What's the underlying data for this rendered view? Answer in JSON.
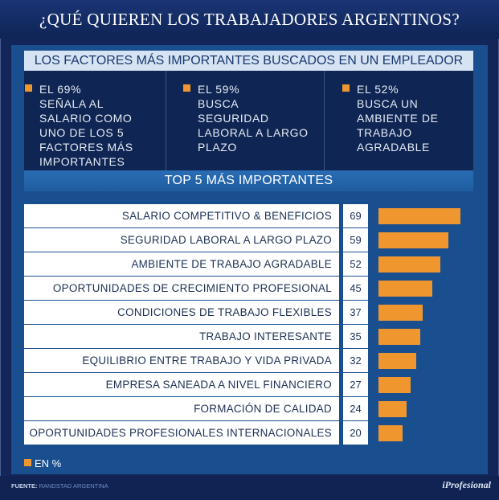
{
  "title": "¿QUÉ QUIEREN LOS TRABAJADORES ARGENTINOS?",
  "subtitle": "LOS FACTORES MÁS IMPORTANTES BUSCADOS EN UN EMPLEADOR",
  "facts": [
    {
      "lines": [
        "EL 69%",
        "SEÑALA AL",
        "SALARIO COMO",
        "UNO DE LOS 5",
        "FACTORES MÁS",
        "IMPORTANTES"
      ]
    },
    {
      "lines": [
        "EL 59%",
        "BUSCA",
        "SEGURIDAD",
        "LABORAL A LARGO",
        "PLAZO"
      ]
    },
    {
      "lines": [
        "EL 52%",
        "BUSCA UN",
        "AMBIENTE DE",
        "TRABAJO",
        "AGRADABLE"
      ]
    }
  ],
  "accent_color": "#f0962f",
  "chart_data": {
    "type": "bar",
    "orientation": "horizontal",
    "title": "TOP 5 MÁS IMPORTANTES",
    "categories": [
      "SALARIO COMPETITIVO & BENEFICIOS",
      "SEGURIDAD LABORAL A LARGO PLAZO",
      "AMBIENTE DE TRABAJO AGRADABLE",
      "OPORTUNIDADES DE CRECIMIENTO PROFESIONAL",
      "CONDICIONES DE TRABAJO FLEXIBLES",
      "TRABAJO INTERESANTE",
      "EQUILIBRIO ENTRE TRABAJO Y VIDA PRIVADA",
      "EMPRESA SANEADA A NIVEL FINANCIERO",
      "FORMACIÓN DE CALIDAD",
      "OPORTUNIDADES PROFESIONALES INTERNACIONALES"
    ],
    "values": [
      69,
      59,
      52,
      45,
      37,
      35,
      32,
      27,
      24,
      20
    ],
    "value_labels": [
      "69",
      "59",
      "52",
      "45",
      "37",
      "35",
      "32",
      "27",
      "24",
      "20"
    ],
    "legend": "EN %",
    "bar_color": "#f0962f",
    "grid": false
  },
  "source": {
    "label": "FUENTE:",
    "text": "RANDSTAD ARGENTINA"
  },
  "brand": "iProfesional"
}
